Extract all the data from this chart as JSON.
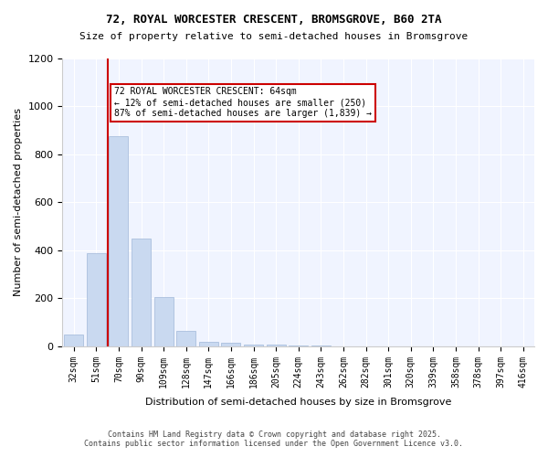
{
  "title1": "72, ROYAL WORCESTER CRESCENT, BROMSGROVE, B60 2TA",
  "title2": "Size of property relative to semi-detached houses in Bromsgrove",
  "xlabel": "Distribution of semi-detached houses by size in Bromsgrove",
  "ylabel": "Number of semi-detached properties",
  "bar_labels": [
    "32sqm",
    "51sqm",
    "70sqm",
    "90sqm",
    "109sqm",
    "128sqm",
    "147sqm",
    "166sqm",
    "186sqm",
    "205sqm",
    "224sqm",
    "243sqm",
    "262sqm",
    "282sqm",
    "301sqm",
    "320sqm",
    "339sqm",
    "358sqm",
    "378sqm",
    "397sqm",
    "416sqm"
  ],
  "bar_values": [
    50,
    390,
    875,
    450,
    205,
    65,
    20,
    15,
    8,
    8,
    2,
    2,
    1,
    0,
    0,
    0,
    0,
    0,
    0,
    0,
    0
  ],
  "bar_color": "#c9d9f0",
  "bar_edge_color": "#a0b8d8",
  "vline_x": 1,
  "vline_color": "#cc0000",
  "annotation_text": "72 ROYAL WORCESTER CRESCENT: 64sqm\n← 12% of semi-detached houses are smaller (250)\n87% of semi-detached houses are larger (1,839) →",
  "annotation_box_color": "#ffffff",
  "annotation_border_color": "#cc0000",
  "ylim": [
    0,
    1200
  ],
  "yticks": [
    0,
    200,
    400,
    600,
    800,
    1000,
    1200
  ],
  "bg_color": "#f0f4ff",
  "footer1": "Contains HM Land Registry data © Crown copyright and database right 2025.",
  "footer2": "Contains public sector information licensed under the Open Government Licence v3.0."
}
